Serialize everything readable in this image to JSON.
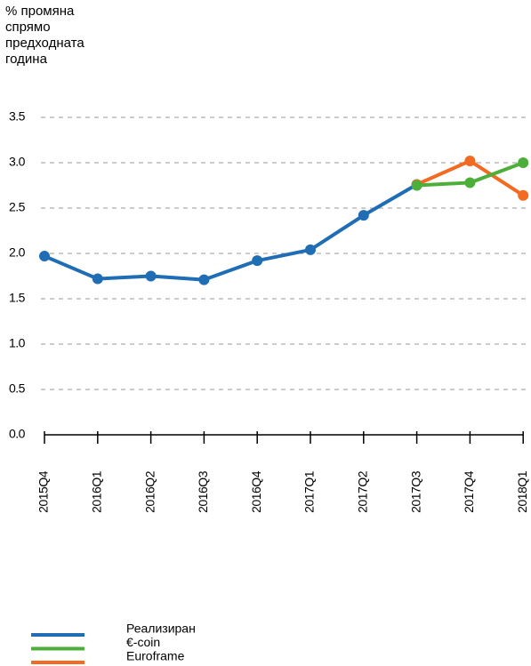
{
  "chart_data": {
    "type": "line",
    "ylabel": "% промяна спрямо предходната година",
    "categories": [
      "2015Q4",
      "2016Q1",
      "2016Q2",
      "2016Q3",
      "2016Q4",
      "2017Q1",
      "2017Q2",
      "2017Q3",
      "2017Q4",
      "2018Q1"
    ],
    "series": [
      {
        "name": "Реализиран",
        "color": "#1f6db4",
        "values": [
          1.97,
          1.72,
          1.75,
          1.71,
          1.92,
          2.04,
          2.42,
          2.76,
          null,
          null
        ]
      },
      {
        "name": "€-coin",
        "color": "#4caf3a",
        "values": [
          null,
          null,
          null,
          null,
          null,
          null,
          null,
          2.75,
          2.78,
          3.0
        ]
      },
      {
        "name": "Euroframe",
        "color": "#f26b21",
        "values": [
          null,
          null,
          null,
          null,
          null,
          null,
          null,
          2.76,
          3.02,
          2.64
        ]
      }
    ],
    "ylim": [
      0,
      3.5
    ],
    "yticks": [
      {
        "value": 0,
        "label": "0.0"
      },
      0.5,
      {
        "value": 1,
        "label": "1.0"
      },
      1.5,
      {
        "value": 2,
        "label": "2.0"
      },
      2.5,
      {
        "value": 3,
        "label": "3.0"
      },
      3.5
    ],
    "grid": true
  }
}
